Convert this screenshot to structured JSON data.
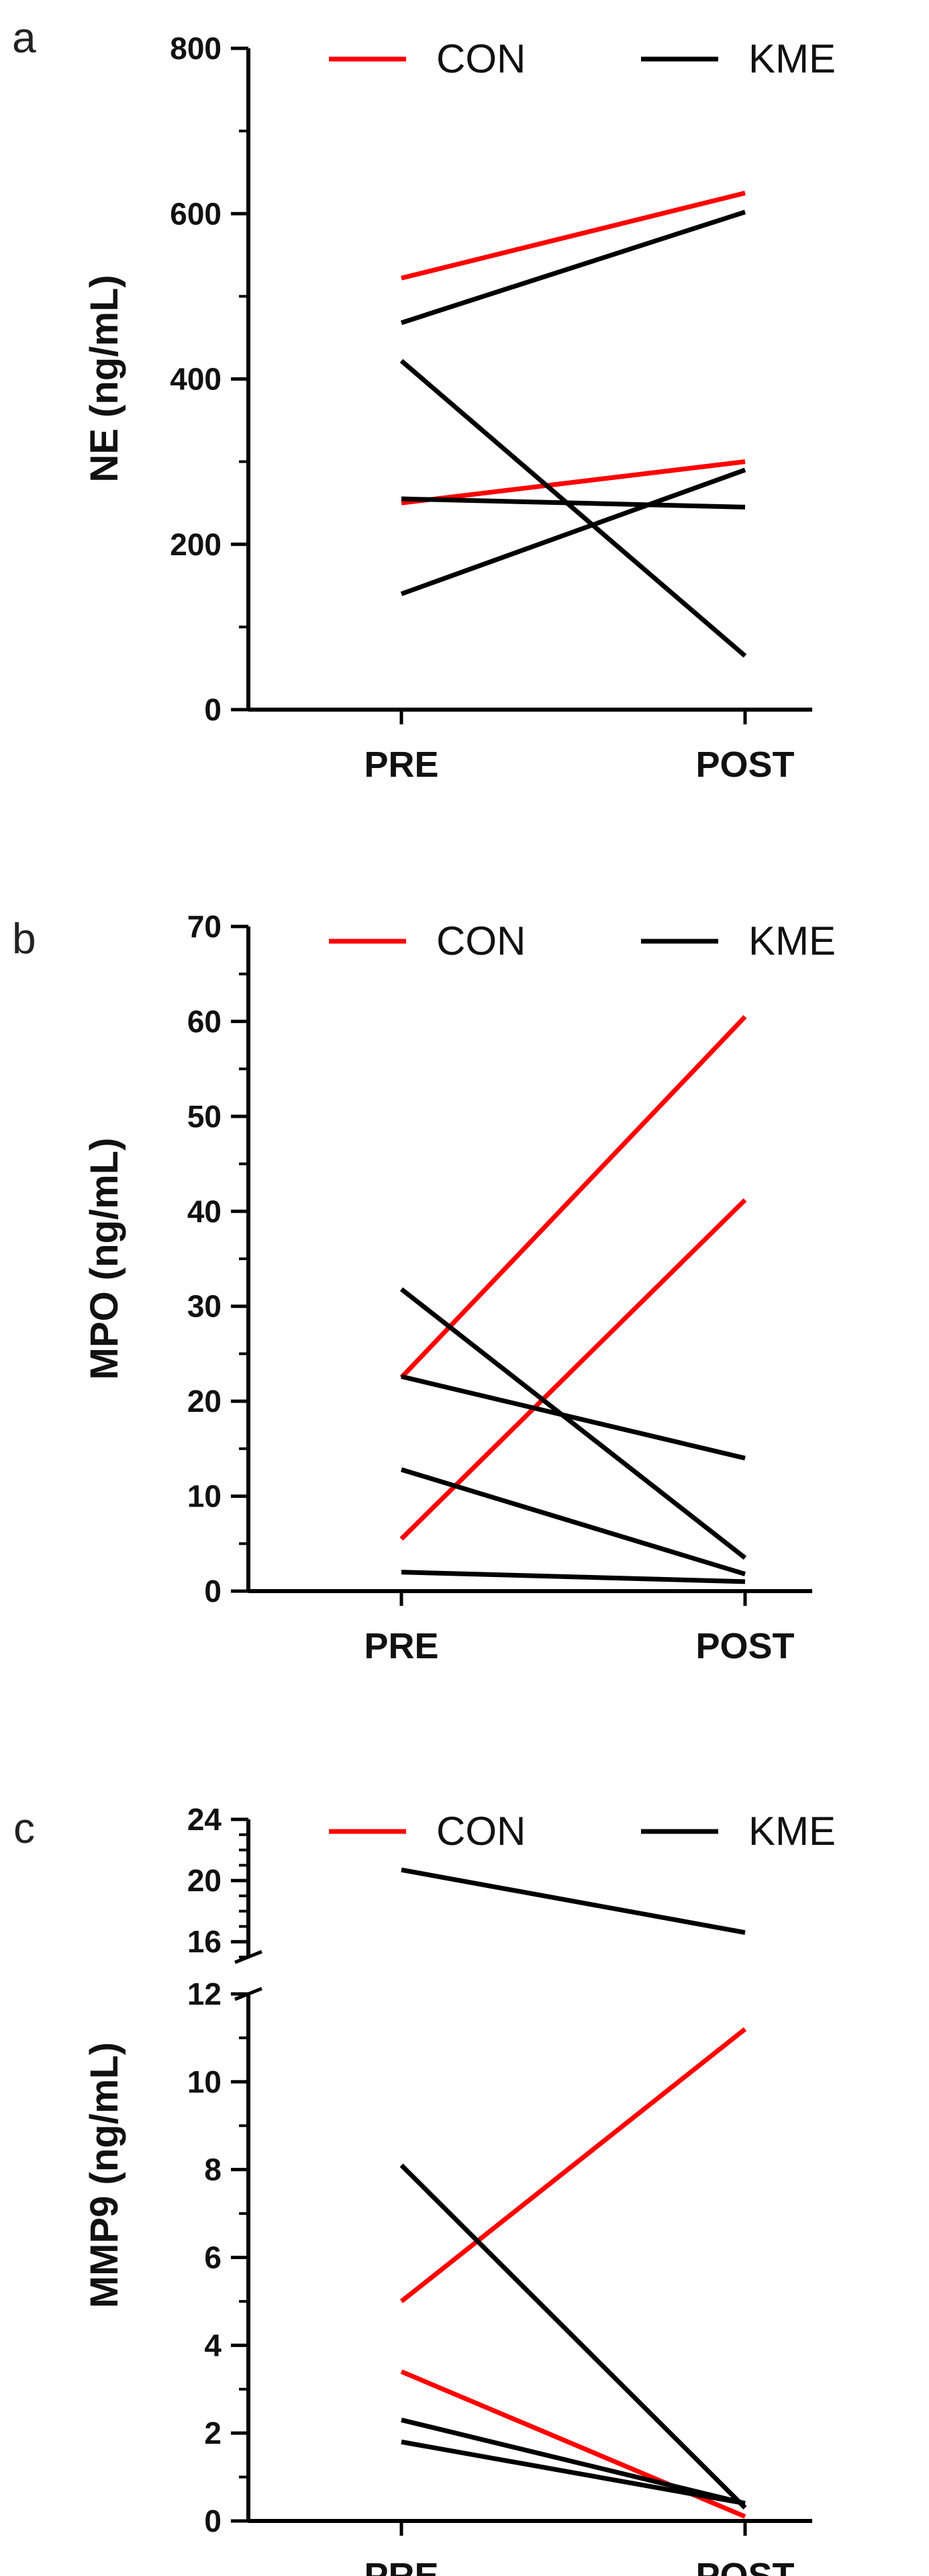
{
  "chart_data": [
    {
      "panel": "a",
      "type": "line",
      "ylabel": "NE (ng/mL)",
      "categories": [
        "PRE",
        "POST"
      ],
      "ylim": [
        0,
        800
      ],
      "yticks": [
        "0",
        "200",
        "400",
        "600",
        "800"
      ],
      "legend": [
        {
          "label": "CON",
          "color": "#ff0000"
        },
        {
          "label": "KME",
          "color": "#000000"
        }
      ],
      "legend_position": "top",
      "grid": false,
      "series": [
        {
          "group": "CON",
          "color": "#ff0000",
          "values": [
            522,
            625
          ]
        },
        {
          "group": "CON",
          "color": "#ff0000",
          "values": [
            250,
            300
          ]
        },
        {
          "group": "KME",
          "color": "#000000",
          "values": [
            468,
            602
          ]
        },
        {
          "group": "KME",
          "color": "#000000",
          "values": [
            422,
            65
          ]
        },
        {
          "group": "KME",
          "color": "#000000",
          "values": [
            255,
            245
          ]
        },
        {
          "group": "KME",
          "color": "#000000",
          "values": [
            140,
            290
          ]
        }
      ]
    },
    {
      "panel": "b",
      "type": "line",
      "ylabel": "MPO (ng/mL)",
      "categories": [
        "PRE",
        "POST"
      ],
      "ylim": [
        0,
        70
      ],
      "yticks": [
        "0",
        "10",
        "20",
        "30",
        "40",
        "50",
        "60",
        "70"
      ],
      "legend": [
        {
          "label": "CON",
          "color": "#ff0000"
        },
        {
          "label": "KME",
          "color": "#000000"
        }
      ],
      "legend_position": "top",
      "grid": false,
      "series": [
        {
          "group": "CON",
          "color": "#ff0000",
          "values": [
            22.5,
            60.5
          ]
        },
        {
          "group": "CON",
          "color": "#ff0000",
          "values": [
            5.5,
            41.2
          ]
        },
        {
          "group": "KME",
          "color": "#000000",
          "values": [
            31.8,
            3.5
          ]
        },
        {
          "group": "KME",
          "color": "#000000",
          "values": [
            22.6,
            14.0
          ]
        },
        {
          "group": "KME",
          "color": "#000000",
          "values": [
            12.8,
            1.8
          ]
        },
        {
          "group": "KME",
          "color": "#000000",
          "values": [
            2.0,
            1.0
          ]
        }
      ]
    },
    {
      "panel": "c",
      "type": "line",
      "ylabel": "MMP9 (ng/mL)",
      "categories": [
        "PRE",
        "POST"
      ],
      "ylim": [
        0,
        24
      ],
      "axis_break": {
        "from": 12,
        "to": 15
      },
      "yticks_lower": [
        "0",
        "2",
        "4",
        "6",
        "8",
        "10",
        "12"
      ],
      "yticks_upper": [
        "16",
        "20",
        "24"
      ],
      "legend": [
        {
          "label": "CON",
          "color": "#ff0000"
        },
        {
          "label": "KME",
          "color": "#000000"
        }
      ],
      "legend_position": "top",
      "grid": false,
      "series": [
        {
          "group": "KME",
          "color": "#000000",
          "values": [
            20.7,
            16.6
          ]
        },
        {
          "group": "CON",
          "color": "#ff0000",
          "values": [
            5.0,
            11.2
          ]
        },
        {
          "group": "CON",
          "color": "#ff0000",
          "values": [
            3.4,
            0.1
          ]
        },
        {
          "group": "KME",
          "color": "#000000",
          "values": [
            8.1,
            0.3
          ]
        },
        {
          "group": "KME",
          "color": "#000000",
          "values": [
            2.3,
            0.4
          ]
        },
        {
          "group": "KME",
          "color": "#000000",
          "values": [
            1.8,
            0.4
          ]
        }
      ]
    }
  ]
}
